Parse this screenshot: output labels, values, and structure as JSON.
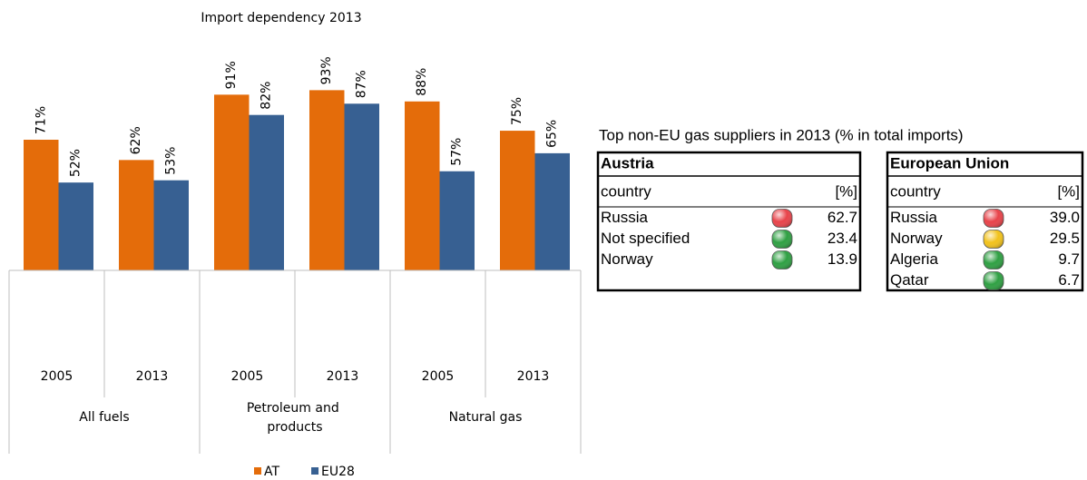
{
  "chart_data": {
    "type": "bar",
    "title": "Import dependency 2013",
    "categories": [
      "2005",
      "2013",
      "2005",
      "2013",
      "2005",
      "2013"
    ],
    "category_groups": [
      "All fuels",
      "Petroleum and products",
      "Natural gas"
    ],
    "series": [
      {
        "name": "AT",
        "color": "#e46c0a",
        "values": [
          71,
          62,
          91,
          93,
          88,
          75
        ],
        "value_labels": [
          "71%",
          "62%",
          "91%",
          "93%",
          "88%",
          "75%"
        ]
      },
      {
        "name": "EU28",
        "color": "#376092",
        "values": [
          52,
          53,
          82,
          87,
          57,
          65
        ],
        "value_labels": [
          "52%",
          "53%",
          "82%",
          "87%",
          "57%",
          "65%"
        ]
      }
    ],
    "ylim": [
      13,
      100
    ],
    "legend": "bottom"
  },
  "table": {
    "title": "Top non-EU gas suppliers in 2013 (% in total imports)",
    "panels": [
      {
        "name": "Austria",
        "column_headers": [
          "country",
          "[%]"
        ],
        "rows": [
          {
            "country": "Russia",
            "light": "#e8434a",
            "value": "62.7"
          },
          {
            "country": "Not specified",
            "light": "#2fa043",
            "value": "23.4"
          },
          {
            "country": "Norway",
            "light": "#2fa043",
            "value": "13.9"
          }
        ]
      },
      {
        "name": "European Union",
        "column_headers": [
          "country",
          "[%]"
        ],
        "rows": [
          {
            "country": "Russia",
            "light": "#e8434a",
            "value": "39.0"
          },
          {
            "country": "Norway",
            "light": "#f2c21b",
            "value": "29.5"
          },
          {
            "country": "Algeria",
            "light": "#2fa043",
            "value": "9.7"
          },
          {
            "country": "Qatar",
            "light": "#2fa043",
            "value": "6.7"
          }
        ]
      }
    ]
  }
}
